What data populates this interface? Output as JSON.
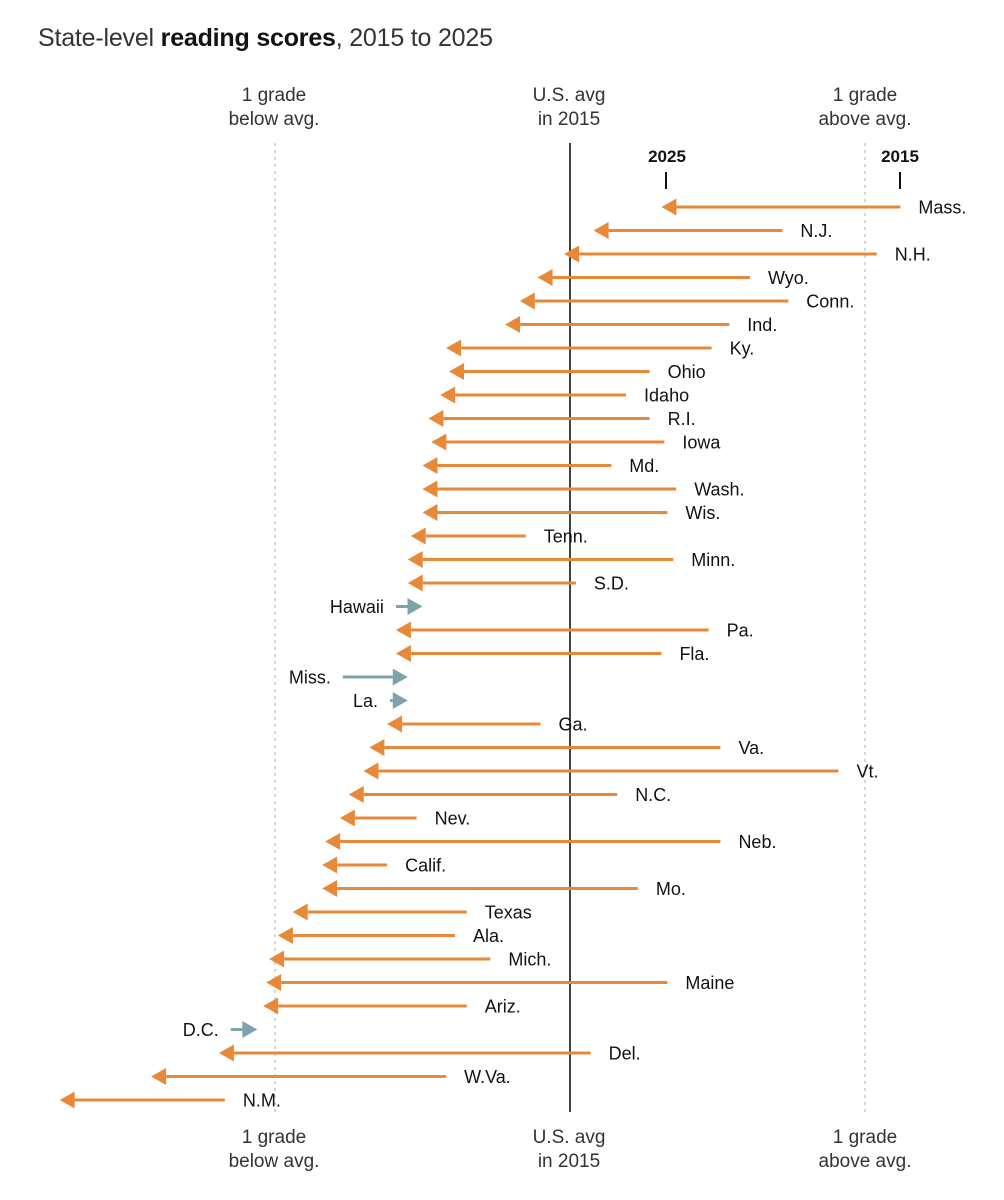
{
  "chart_data": {
    "type": "arrow",
    "title_prefix": "State-level ",
    "title_bold": "reading scores",
    "title_suffix": ", 2015 to 2025",
    "unit": "grade levels relative to U.S. average in 2015",
    "xlim": [
      -1.12,
      1.05
    ],
    "reference_lines": [
      {
        "value": -1,
        "label_line1": "1 grade",
        "label_line2": "below avg."
      },
      {
        "value": 0,
        "label_line1": "U.S. avg",
        "label_line2": "in 2015"
      },
      {
        "value": 1,
        "label_line1": "1 grade",
        "label_line2": "above avg."
      }
    ],
    "legend": {
      "start_label": "2015",
      "end_label": "2025"
    },
    "colors": {
      "decline": "#e8893a",
      "improve": "#7fa3ab",
      "avg_line": "#121212",
      "grid_line": "#bbbbbb"
    },
    "series": [
      {
        "state": "Mass.",
        "from": 1.12,
        "to": 0.31
      },
      {
        "state": "N.J.",
        "from": 0.72,
        "to": 0.08
      },
      {
        "state": "N.H.",
        "from": 1.04,
        "to": -0.02
      },
      {
        "state": "Wyo.",
        "from": 0.61,
        "to": -0.11
      },
      {
        "state": "Conn.",
        "from": 0.74,
        "to": -0.17
      },
      {
        "state": "Ind.",
        "from": 0.54,
        "to": -0.22
      },
      {
        "state": "Ky.",
        "from": 0.48,
        "to": -0.42
      },
      {
        "state": "Ohio",
        "from": 0.27,
        "to": -0.41
      },
      {
        "state": "Idaho",
        "from": 0.19,
        "to": -0.44
      },
      {
        "state": "R.I.",
        "from": 0.27,
        "to": -0.48
      },
      {
        "state": "Iowa",
        "from": 0.32,
        "to": -0.47
      },
      {
        "state": "Md.",
        "from": 0.14,
        "to": -0.5
      },
      {
        "state": "Wash.",
        "from": 0.36,
        "to": -0.5
      },
      {
        "state": "Wis.",
        "from": 0.33,
        "to": -0.5
      },
      {
        "state": "Tenn.",
        "from": -0.15,
        "to": -0.54
      },
      {
        "state": "Minn.",
        "from": 0.35,
        "to": -0.55
      },
      {
        "state": "S.D.",
        "from": 0.02,
        "to": -0.55
      },
      {
        "state": "Hawaii",
        "from": -0.59,
        "to": -0.5
      },
      {
        "state": "Pa.",
        "from": 0.47,
        "to": -0.59
      },
      {
        "state": "Fla.",
        "from": 0.31,
        "to": -0.59
      },
      {
        "state": "Miss.",
        "from": -0.77,
        "to": -0.55
      },
      {
        "state": "La.",
        "from": -0.61,
        "to": -0.55
      },
      {
        "state": "Ga.",
        "from": -0.1,
        "to": -0.62
      },
      {
        "state": "Va.",
        "from": 0.51,
        "to": -0.68
      },
      {
        "state": "Vt.",
        "from": 0.91,
        "to": -0.7
      },
      {
        "state": "N.C.",
        "from": 0.16,
        "to": -0.75
      },
      {
        "state": "Nev.",
        "from": -0.52,
        "to": -0.78
      },
      {
        "state": "Neb.",
        "from": 0.51,
        "to": -0.83
      },
      {
        "state": "Calif.",
        "from": -0.62,
        "to": -0.84
      },
      {
        "state": "Mo.",
        "from": 0.23,
        "to": -0.84
      },
      {
        "state": "Texas",
        "from": -0.35,
        "to": -0.94
      },
      {
        "state": "Ala.",
        "from": -0.39,
        "to": -0.99
      },
      {
        "state": "Mich.",
        "from": -0.27,
        "to": -1.02
      },
      {
        "state": "Maine",
        "from": 0.33,
        "to": -1.03
      },
      {
        "state": "Ariz.",
        "from": -0.35,
        "to": -1.04
      },
      {
        "state": "D.C.",
        "from": -1.15,
        "to": -1.06
      },
      {
        "state": "Del.",
        "from": 0.07,
        "to": -1.19
      },
      {
        "state": "W.Va.",
        "from": -0.42,
        "to": -1.42
      },
      {
        "state": "N.M.",
        "from": -1.17,
        "to": -1.73
      }
    ]
  }
}
